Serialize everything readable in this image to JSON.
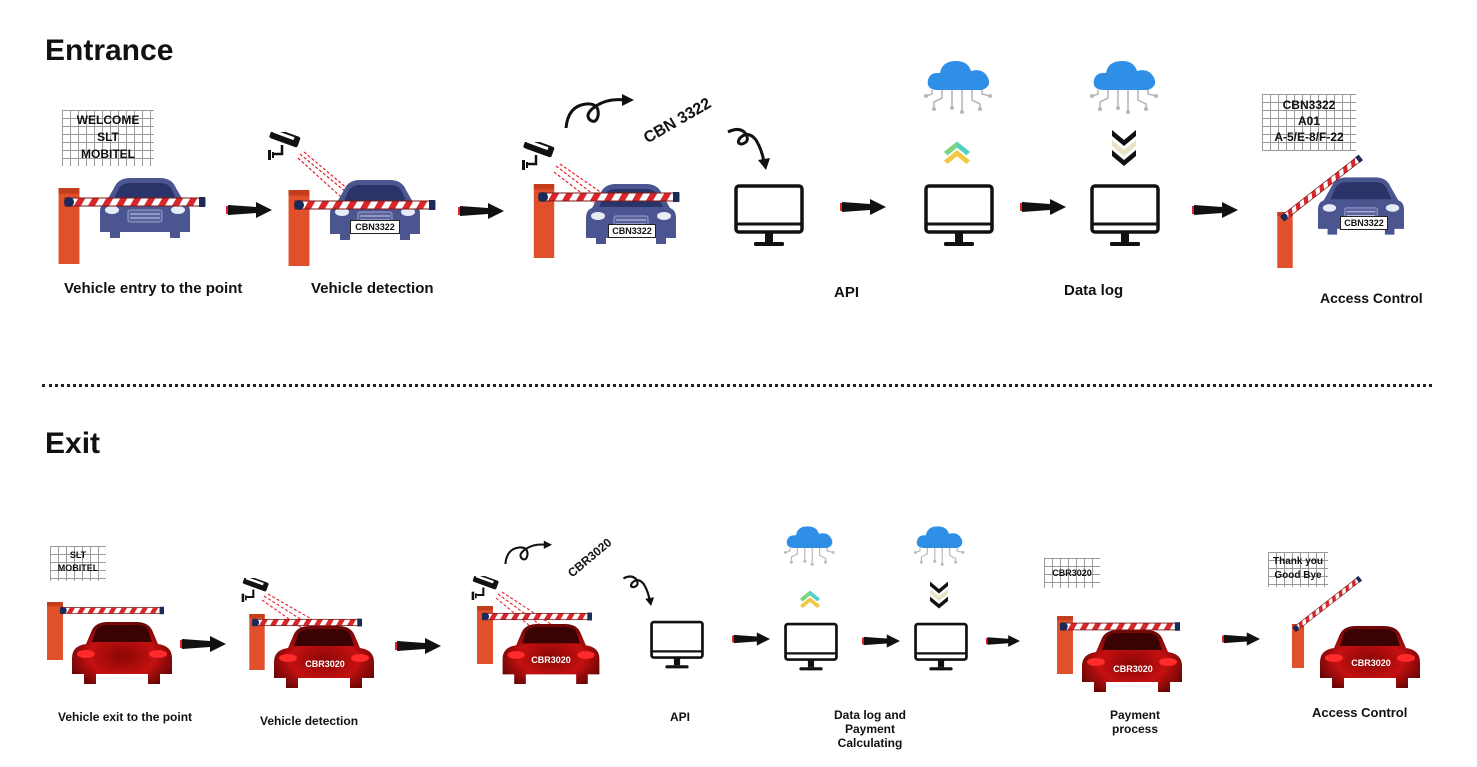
{
  "entrance": {
    "title": "Entrance",
    "sign_welcome": [
      "WELCOME",
      "SLT",
      "MOBITEL"
    ],
    "plate": "CBN3322",
    "floating_plate": "CBN 3322",
    "access_sign": [
      "CBN3322",
      "A01",
      "A-5/E-8/F-22"
    ],
    "labels": {
      "entry": "Vehicle entry to the point",
      "detection": "Vehicle detection",
      "api": "API",
      "datalog": "Data log",
      "access": "Access Control"
    }
  },
  "exit": {
    "title": "Exit",
    "sign_brand": [
      "SLT",
      "MOBITEL"
    ],
    "plate": "CBR3020",
    "floating_plate": "CBR3020",
    "payment_sign": "CBR3020",
    "bye_sign": [
      "Thank you",
      "Good Bye"
    ],
    "labels": {
      "exit": "Vehicle exit to the point",
      "detection": "Vehicle detection",
      "api": "API",
      "datalog": [
        "Data log and",
        "Payment",
        "Calculating"
      ],
      "payment": [
        "Payment",
        "process"
      ],
      "access": "Access Control"
    }
  },
  "colors": {
    "barrier_post": "#e0502a",
    "boom_red": "#d8262a",
    "car_blue": "#4b5691",
    "car_red": "#c41010",
    "cloud": "#2f8fe6",
    "arrow": "#111111",
    "laser": "#e8202a"
  }
}
